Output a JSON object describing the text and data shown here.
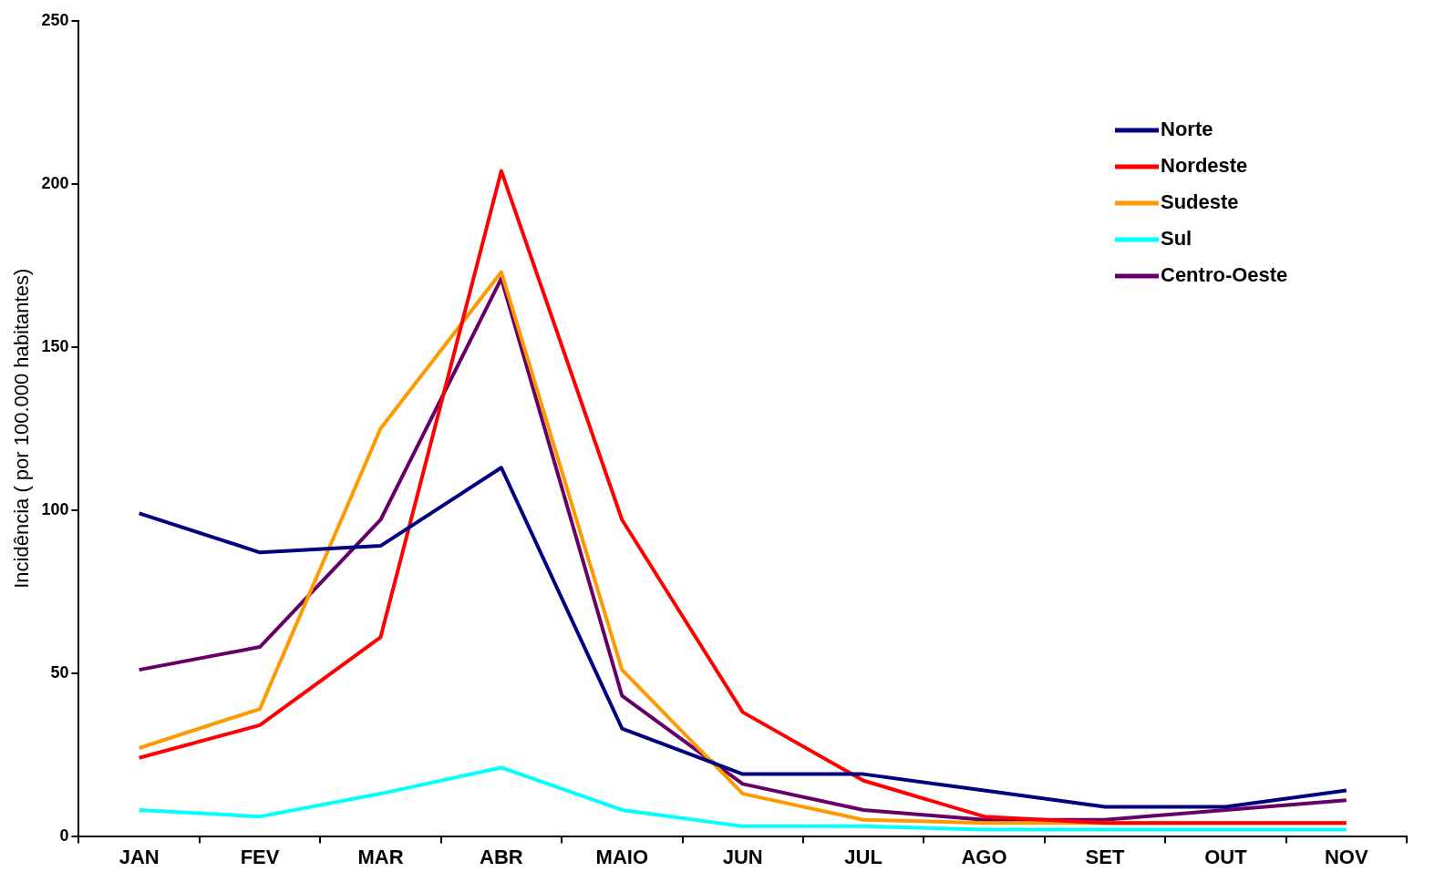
{
  "chart_data": {
    "type": "line",
    "ylabel": "Incidência ( por 100.000 habitantes)",
    "categories": [
      "JAN",
      "FEV",
      "MAR",
      "ABR",
      "MAIO",
      "JUN",
      "JUL",
      "AGO",
      "SET",
      "OUT",
      "NOV"
    ],
    "ylim": [
      0,
      250
    ],
    "yticks": [
      0,
      50,
      100,
      150,
      200,
      250
    ],
    "grid": false,
    "legend": "top right",
    "marker": "none",
    "line_style": "solid",
    "series": [
      {
        "name": "Norte",
        "color": "#000080",
        "values": [
          99,
          87,
          89,
          113,
          33,
          19,
          19,
          14,
          9,
          9,
          14
        ]
      },
      {
        "name": "Nordeste",
        "color": "#ff0000",
        "values": [
          24,
          34,
          61,
          204,
          97,
          38,
          17,
          6,
          4,
          4,
          4
        ]
      },
      {
        "name": "Sudeste",
        "color": "#ff9900",
        "values": [
          27,
          39,
          125,
          173,
          51,
          13,
          5,
          4,
          4,
          4,
          4
        ]
      },
      {
        "name": "Sul",
        "color": "#00ffff",
        "values": [
          8,
          6,
          13,
          21,
          8,
          3,
          3,
          2,
          2,
          2,
          2
        ]
      },
      {
        "name": "Centro-Oeste",
        "color": "#660066",
        "values": [
          51,
          58,
          97,
          171,
          43,
          16,
          8,
          5,
          5,
          8,
          11
        ]
      }
    ]
  }
}
